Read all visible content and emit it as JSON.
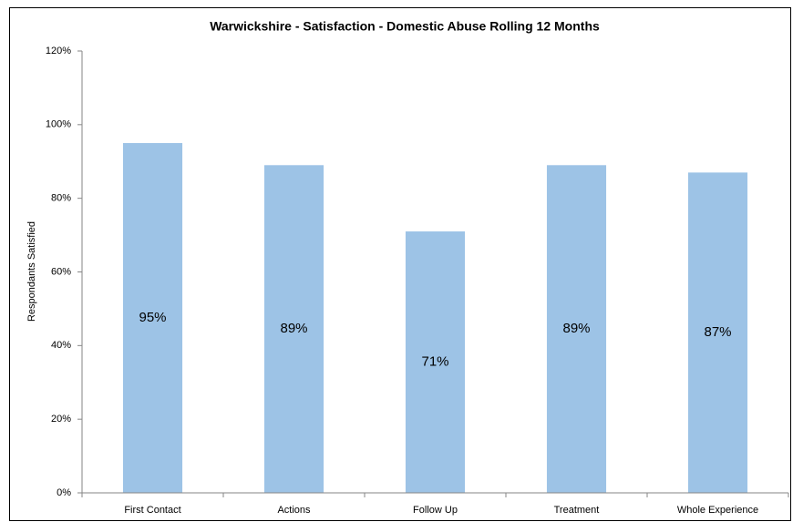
{
  "chart_data": {
    "type": "bar",
    "title": "Warwickshire - Satisfaction - Domestic Abuse Rolling 12 Months",
    "y_label": "Respondants Satisfied",
    "categories": [
      "First Contact",
      "Actions",
      "Follow Up",
      "Treatment",
      "Whole Experience"
    ],
    "values": [
      95,
      89,
      71,
      89,
      87
    ],
    "value_labels": [
      "95%",
      "89%",
      "71%",
      "89%",
      "87%"
    ],
    "color": "#9dc3e6",
    "ylim": [
      0,
      120
    ],
    "yticks": [
      {
        "value": 0,
        "label": "0%"
      },
      {
        "value": 20,
        "label": "20%"
      },
      {
        "value": 40,
        "label": "40%"
      },
      {
        "value": 60,
        "label": "60%"
      },
      {
        "value": 80,
        "label": "80%"
      },
      {
        "value": 100,
        "label": "100%"
      },
      {
        "value": 120,
        "label": "120%"
      }
    ],
    "grid": false
  }
}
